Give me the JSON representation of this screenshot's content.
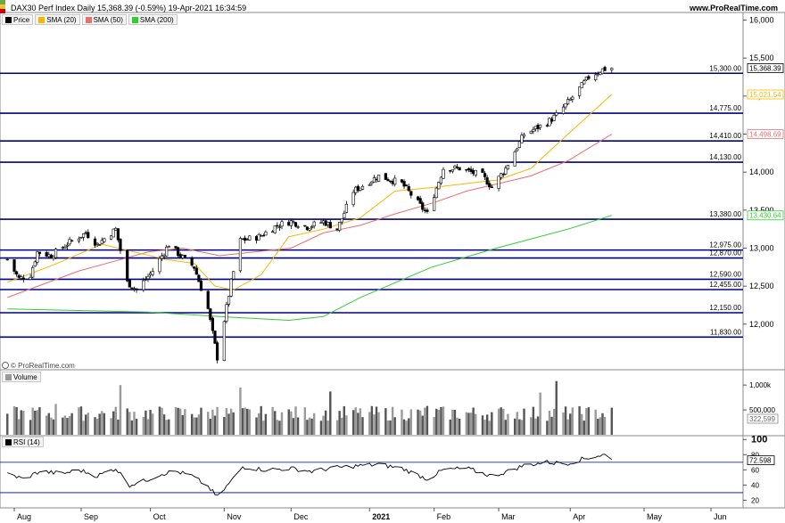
{
  "header": {
    "title": "DAX30 Perf Index Daily 15,368.39 (-0.59%) 19-Apr-2021 16:34:59",
    "site": "www.ProRealTime.com",
    "copyright": "© ProRealTime.com"
  },
  "legend": {
    "items": [
      {
        "label": "Price",
        "color": "#000000"
      },
      {
        "label": "SMA (20)",
        "color": "#f5b800"
      },
      {
        "label": "SMA (50)",
        "color": "#e87070"
      },
      {
        "label": "SMA (200)",
        "color": "#33cc33"
      }
    ]
  },
  "panels": {
    "volume_label": "Volume",
    "rsi_label": "RSI (14)"
  },
  "colors": {
    "support_lines": "#000080",
    "sma20": "#f5b800",
    "sma50": "#e87070",
    "sma200": "#33cc33",
    "candle_up": "#ffffff",
    "candle_down": "#000000"
  },
  "chart_data": [
    {
      "type": "candlestick",
      "title": "DAX30 Perf Index Daily",
      "x_tick_labels": [
        "Aug",
        "Sep",
        "Oct",
        "Nov",
        "Dec",
        "2021",
        "Feb",
        "Mar",
        "Apr",
        "May",
        "Jun"
      ],
      "x_tick_dates": [
        "2020-08-03",
        "2020-09-01",
        "2020-10-01",
        "2020-11-02",
        "2020-12-01",
        "2021-01-04",
        "2021-02-01",
        "2021-03-01",
        "2021-04-01",
        "2021-05-03",
        "2021-06-01"
      ],
      "ylim": [
        11400,
        16100
      ],
      "y_ticks": [
        "16,000",
        "15,500",
        "15,000",
        "14,500",
        "14,000",
        "13,500",
        "13,000",
        "12,500",
        "12,000"
      ],
      "y_tick_values": [
        16000,
        15500,
        15000,
        14500,
        14000,
        13500,
        13000,
        12500,
        12000
      ],
      "horizontal_levels": [
        {
          "value": 15300,
          "label": "15,300.00"
        },
        {
          "value": 14775,
          "label": "14,775.00"
        },
        {
          "value": 14410,
          "label": "14,410.00"
        },
        {
          "value": 14130,
          "label": "14,130.00"
        },
        {
          "value": 13380,
          "label": "13,380.00"
        },
        {
          "value": 12975,
          "label": "12,975.00"
        },
        {
          "value": 12870,
          "label": "12,870.00"
        },
        {
          "value": 12590,
          "label": "12,590.00"
        },
        {
          "value": 12455,
          "label": "12,455.00"
        },
        {
          "value": 12150,
          "label": "12,150.00"
        },
        {
          "value": 11830,
          "label": "11,830.00"
        }
      ],
      "value_tags": [
        {
          "name": "Price",
          "value": 15368.39,
          "label": "15,368.39",
          "color": "#000000"
        },
        {
          "name": "SMA (20)",
          "value": 15021.54,
          "label": "15,021.54",
          "color": "#f5b800"
        },
        {
          "name": "SMA (50)",
          "value": 14498.69,
          "label": "14,498.69",
          "color": "#e87070"
        },
        {
          "name": "SMA (200)",
          "value": 13430.64,
          "label": "13,430.64",
          "color": "#33cc33"
        }
      ],
      "anchors": [
        [
          "2020-07-31",
          12850
        ],
        [
          "2020-08-05",
          12600
        ],
        [
          "2020-08-10",
          12650
        ],
        [
          "2020-08-13",
          12950
        ],
        [
          "2020-08-19",
          12900
        ],
        [
          "2020-08-26",
          13060
        ],
        [
          "2020-09-03",
          13200
        ],
        [
          "2020-09-08",
          13050
        ],
        [
          "2020-09-16",
          13250
        ],
        [
          "2020-09-21",
          12550
        ],
        [
          "2020-09-25",
          12450
        ],
        [
          "2020-10-02",
          12700
        ],
        [
          "2020-10-09",
          13050
        ],
        [
          "2020-10-14",
          12900
        ],
        [
          "2020-10-20",
          12750
        ],
        [
          "2020-10-26",
          12200
        ],
        [
          "2020-10-30",
          11560
        ],
        [
          "2020-11-05",
          12550
        ],
        [
          "2020-11-09",
          13100
        ],
        [
          "2020-11-17",
          13150
        ],
        [
          "2020-11-25",
          13300
        ],
        [
          "2020-12-01",
          13350
        ],
        [
          "2020-12-08",
          13280
        ],
        [
          "2020-12-15",
          13350
        ],
        [
          "2020-12-21",
          13250
        ],
        [
          "2020-12-28",
          13750
        ],
        [
          "2021-01-08",
          13950
        ],
        [
          "2021-01-18",
          13850
        ],
        [
          "2021-01-29",
          13450
        ],
        [
          "2021-02-05",
          14050
        ],
        [
          "2021-02-12",
          14050
        ],
        [
          "2021-02-22",
          13950
        ],
        [
          "2021-02-26",
          13800
        ],
        [
          "2021-03-04",
          14050
        ],
        [
          "2021-03-12",
          14500
        ],
        [
          "2021-03-22",
          14650
        ],
        [
          "2021-03-26",
          14750
        ],
        [
          "2021-04-01",
          14950
        ],
        [
          "2021-04-09",
          15250
        ],
        [
          "2021-04-15",
          15350
        ],
        [
          "2021-04-19",
          15368.39
        ]
      ],
      "sma20": [
        [
          "2020-07-31",
          12550
        ],
        [
          "2020-08-20",
          12780
        ],
        [
          "2020-09-10",
          13050
        ],
        [
          "2020-09-24",
          12950
        ],
        [
          "2020-10-08",
          12850
        ],
        [
          "2020-10-20",
          12800
        ],
        [
          "2020-10-29",
          12500
        ],
        [
          "2020-11-06",
          12450
        ],
        [
          "2020-11-18",
          12650
        ],
        [
          "2020-11-30",
          13150
        ],
        [
          "2020-12-15",
          13250
        ],
        [
          "2020-12-31",
          13400
        ],
        [
          "2021-01-15",
          13750
        ],
        [
          "2021-02-01",
          13800
        ],
        [
          "2021-02-15",
          13850
        ],
        [
          "2021-03-01",
          13900
        ],
        [
          "2021-03-15",
          14050
        ],
        [
          "2021-03-31",
          14500
        ],
        [
          "2021-04-19",
          15021.54
        ]
      ],
      "sma50": [
        [
          "2020-07-31",
          12350
        ],
        [
          "2020-08-31",
          12700
        ],
        [
          "2020-09-30",
          12950
        ],
        [
          "2020-10-15",
          13000
        ],
        [
          "2020-10-31",
          12900
        ],
        [
          "2020-11-15",
          12950
        ],
        [
          "2020-12-01",
          13000
        ],
        [
          "2020-12-15",
          13200
        ],
        [
          "2020-12-31",
          13300
        ],
        [
          "2021-01-15",
          13450
        ],
        [
          "2021-02-01",
          13600
        ],
        [
          "2021-02-15",
          13750
        ],
        [
          "2021-03-01",
          13850
        ],
        [
          "2021-03-15",
          13950
        ],
        [
          "2021-03-31",
          14150
        ],
        [
          "2021-04-19",
          14498.69
        ]
      ],
      "sma200": [
        [
          "2020-07-31",
          12200
        ],
        [
          "2020-08-31",
          12180
        ],
        [
          "2020-09-30",
          12160
        ],
        [
          "2020-10-31",
          12100
        ],
        [
          "2020-11-30",
          12050
        ],
        [
          "2020-12-15",
          12100
        ],
        [
          "2020-12-31",
          12350
        ],
        [
          "2021-01-31",
          12750
        ],
        [
          "2021-02-28",
          13000
        ],
        [
          "2021-03-31",
          13250
        ],
        [
          "2021-04-19",
          13430.64
        ]
      ]
    },
    {
      "type": "bar",
      "title": "Volume",
      "y_ticks": [
        "1,000k",
        "500,000"
      ],
      "y_tick_values": [
        1000000,
        500000
      ],
      "ylim": [
        0,
        1200000
      ],
      "last_value": {
        "value": 322599,
        "label": "322,599"
      },
      "spikes": [
        [
          "2020-08-21",
          620000
        ],
        [
          "2020-09-18",
          1000000
        ],
        [
          "2020-10-30",
          560000
        ],
        [
          "2020-11-09",
          950000
        ],
        [
          "2020-12-18",
          870000
        ],
        [
          "2021-01-29",
          580000
        ],
        [
          "2021-03-19",
          850000
        ],
        [
          "2021-03-26",
          1080000
        ]
      ]
    },
    {
      "type": "line",
      "title": "RSI (14)",
      "y_ticks": [
        "100",
        "80",
        "60",
        "40",
        "20"
      ],
      "y_tick_values": [
        100,
        80,
        60,
        40,
        20
      ],
      "ylim": [
        10,
        105
      ],
      "overbought": 70,
      "oversold": 30,
      "last_value": {
        "value": 72.598,
        "label": "72.598"
      },
      "anchors": [
        [
          "2020-07-31",
          55
        ],
        [
          "2020-08-07",
          48
        ],
        [
          "2020-08-14",
          58
        ],
        [
          "2020-08-24",
          55
        ],
        [
          "2020-08-31",
          60
        ],
        [
          "2020-09-08",
          52
        ],
        [
          "2020-09-16",
          62
        ],
        [
          "2020-09-22",
          40
        ],
        [
          "2020-09-28",
          45
        ],
        [
          "2020-10-06",
          55
        ],
        [
          "2020-10-12",
          58
        ],
        [
          "2020-10-19",
          52
        ],
        [
          "2020-10-26",
          38
        ],
        [
          "2020-10-30",
          24
        ],
        [
          "2020-11-05",
          45
        ],
        [
          "2020-11-10",
          64
        ],
        [
          "2020-11-20",
          60
        ],
        [
          "2020-12-01",
          62
        ],
        [
          "2020-12-10",
          58
        ],
        [
          "2020-12-18",
          62
        ],
        [
          "2020-12-28",
          65
        ],
        [
          "2021-01-08",
          67
        ],
        [
          "2021-01-18",
          62
        ],
        [
          "2021-01-29",
          48
        ],
        [
          "2021-02-05",
          60
        ],
        [
          "2021-02-15",
          62
        ],
        [
          "2021-02-26",
          52
        ],
        [
          "2021-03-05",
          58
        ],
        [
          "2021-03-12",
          66
        ],
        [
          "2021-03-22",
          70
        ],
        [
          "2021-03-30",
          68
        ],
        [
          "2021-04-06",
          74
        ],
        [
          "2021-04-12",
          78
        ],
        [
          "2021-04-16",
          80
        ],
        [
          "2021-04-19",
          72.598
        ]
      ]
    }
  ]
}
